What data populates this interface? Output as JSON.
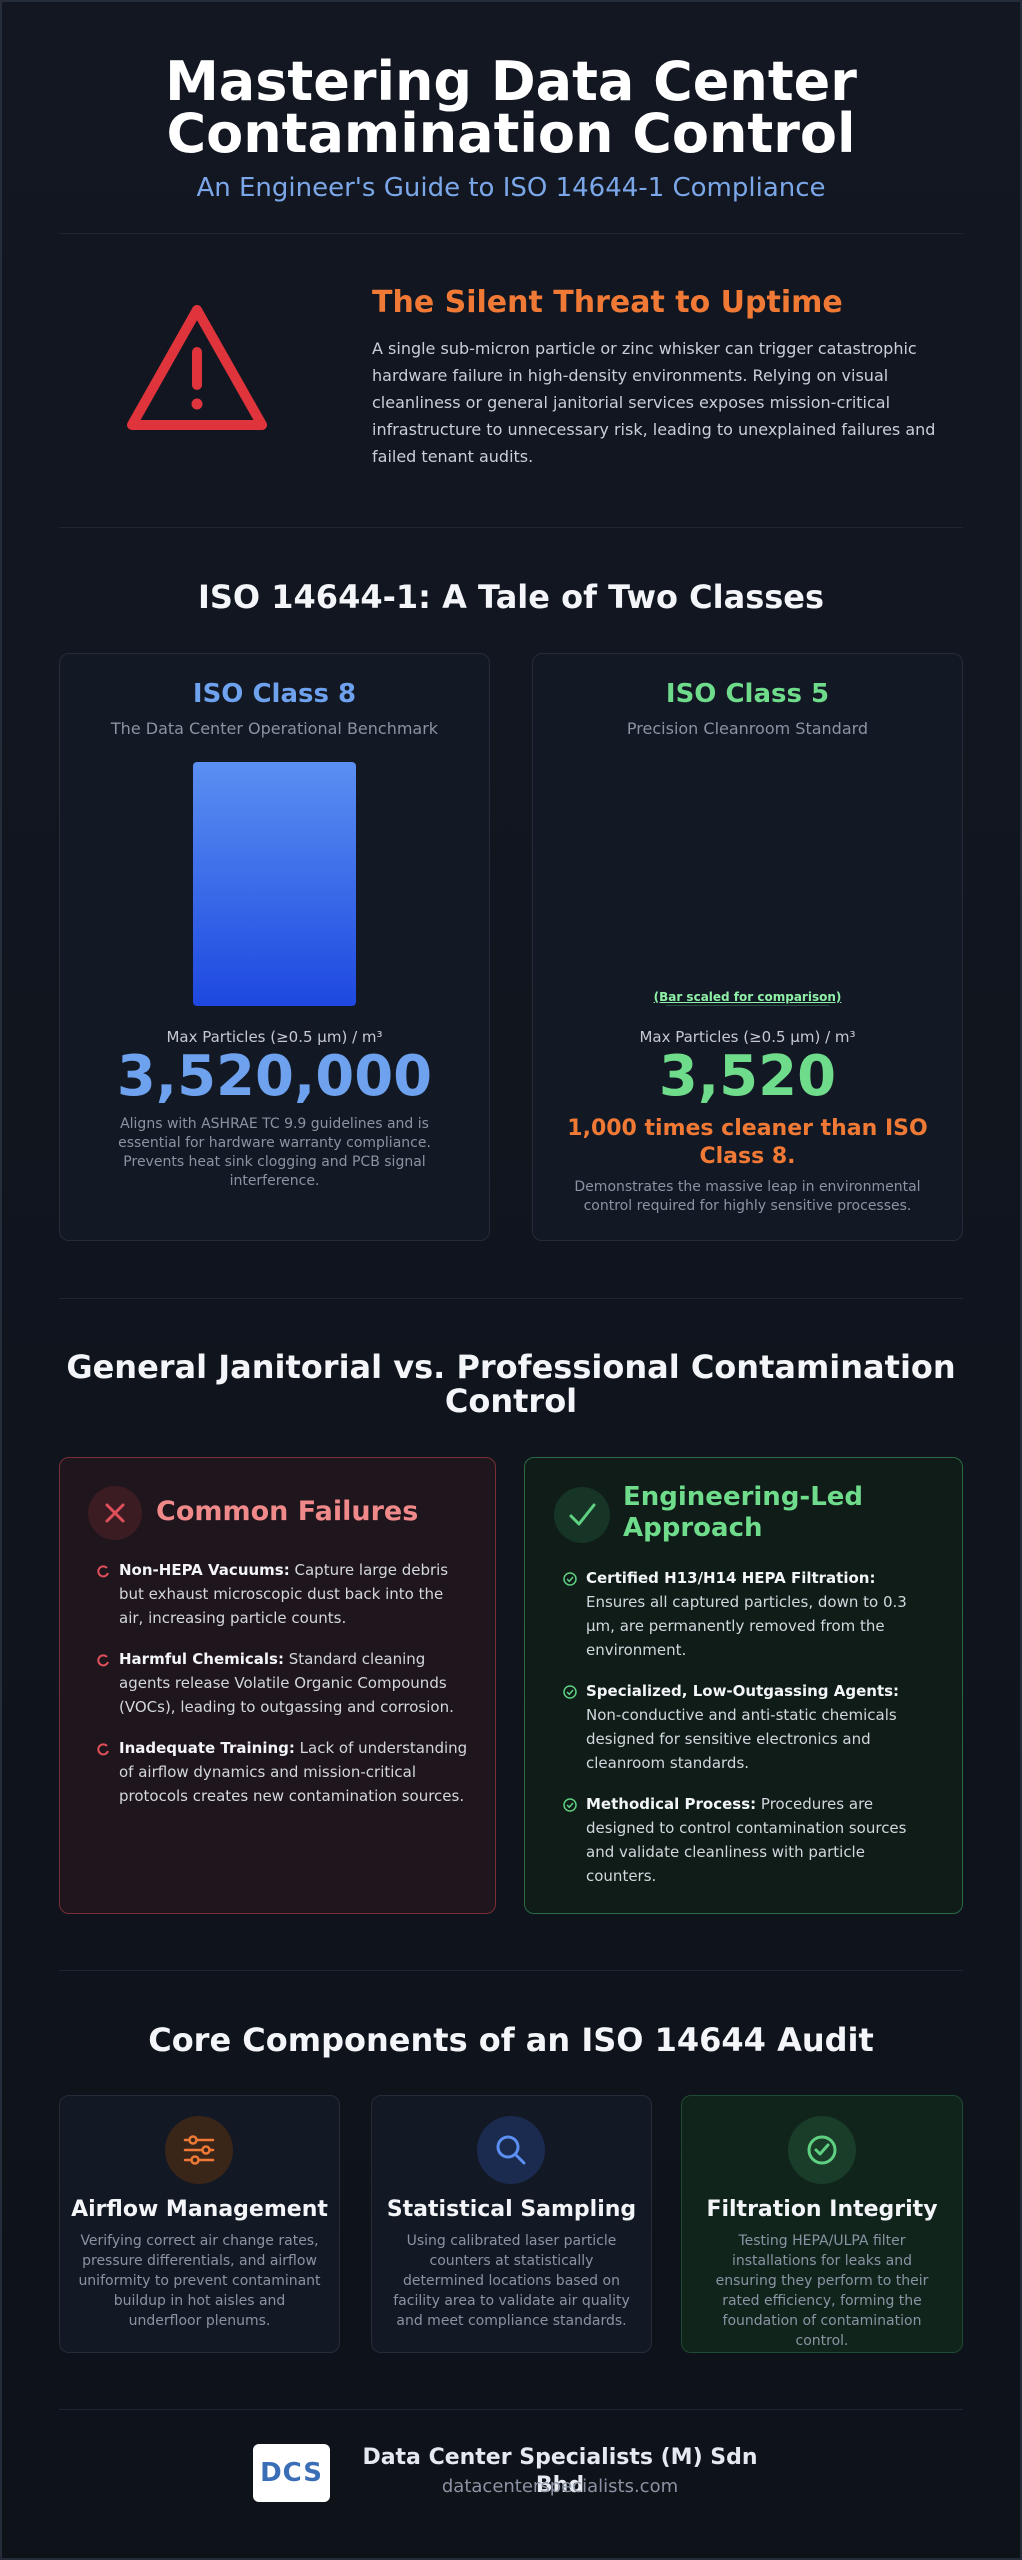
{
  "header": {
    "title": "Mastering Data Center Contamination Control",
    "subtitle": "An Engineer's Guide to ISO 14644-1 Compliance"
  },
  "threat": {
    "heading": "The Silent Threat to Uptime",
    "body": "A single sub-micron particle or zinc whisker can trigger catastrophic hardware failure in high-density environments. Relying on visual cleanliness or general janitorial services exposes mission-critical infrastructure to unnecessary risk, leading to unexplained failures and failed tenant audits."
  },
  "comparison": {
    "heading": "ISO 14644-1: A Tale of Two Classes",
    "classes": [
      {
        "name": "ISO Class 8",
        "subtitle": "The Data Center Operational Benchmark",
        "metric_label": "Max Particles (≥0.5 µm) / m³",
        "value": 3520000,
        "value_label": "3,520,000",
        "description": "Aligns with ASHRAE TC 9.9 guidelines and is essential for hardware warranty compliance. Prevents heat sink clogging and PCB signal interference."
      },
      {
        "name": "ISO Class 5",
        "subtitle": "Precision Cleanroom Standard",
        "note": "(Bar scaled for comparison)",
        "metric_label": "Max Particles (≥0.5 µm) / m³",
        "value": 3520,
        "value_label": "3,520",
        "highlight": "1,000 times cleaner than ISO Class 8.",
        "description": "Demonstrates the massive leap in environmental control required for highly sensitive processes."
      }
    ]
  },
  "janitorial": {
    "heading": "General Janitorial vs. Professional Contamination Control",
    "failures": {
      "title": "Common Failures",
      "items": [
        {
          "term": "Non-HEPA Vacuums:",
          "text": "Capture large debris but exhaust microscopic dust back into the air, increasing particle counts."
        },
        {
          "term": "Harmful Chemicals:",
          "text": "Standard cleaning agents release Volatile Organic Compounds (VOCs), leading to outgassing and corrosion."
        },
        {
          "term": "Inadequate Training:",
          "text": "Lack of understanding of airflow dynamics and mission-critical protocols creates new contamination sources."
        }
      ]
    },
    "approach": {
      "title": "Engineering-Led Approach",
      "items": [
        {
          "term": "Certified H13/H14 HEPA Filtration:",
          "text": "Ensures all captured particles, down to 0.3 µm, are permanently removed from the environment."
        },
        {
          "term": "Specialized, Low-Outgassing Agents:",
          "text": "Non-conductive and anti-static chemicals designed for sensitive electronics and cleanroom standards."
        },
        {
          "term": "Methodical Process:",
          "text": "Procedures are designed to control contamination sources and validate cleanliness with particle counters."
        }
      ]
    }
  },
  "audit": {
    "heading": "Core Components of an ISO 14644 Audit",
    "components": [
      {
        "title": "Airflow Management",
        "description": "Verifying correct air change rates, pressure differentials, and airflow uniformity to prevent contaminant buildup in hot aisles and underfloor plenums."
      },
      {
        "title": "Statistical Sampling",
        "description": "Using calibrated laser particle counters at statistically determined locations based on facility area to validate air quality and meet compliance standards."
      },
      {
        "title": "Filtration Integrity",
        "description": "Testing HEPA/ULPA filter installations for leaks and ensuring they perform to their rated efficiency, forming the foundation of contamination control."
      }
    ]
  },
  "footer": {
    "logo_text": "DCS",
    "company": "Data Center Specialists (M) Sdn Bhd",
    "url": "datacenterspecialists.com"
  }
}
